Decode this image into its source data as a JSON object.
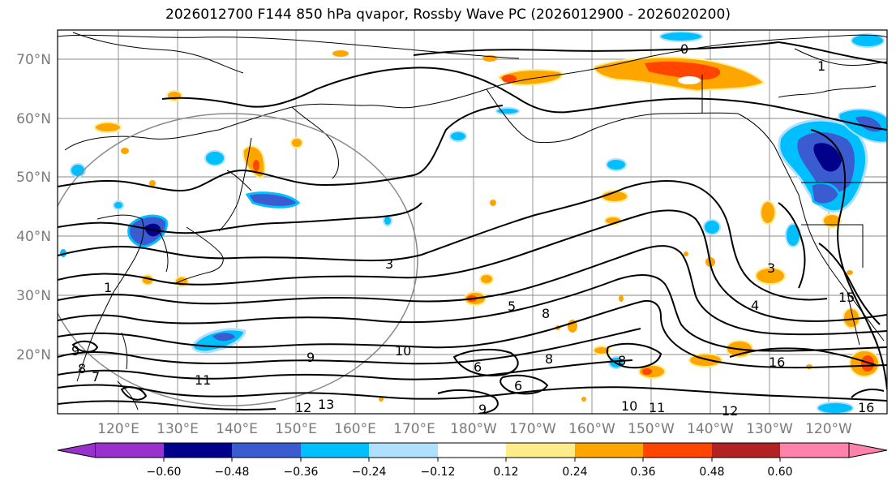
{
  "map": {
    "title": "2026012700 F144 850 hPa qvapor, Rossby Wave PC (2026012900 - 2026020200)",
    "lat_labels": [
      "70°N",
      "60°N",
      "50°N",
      "40°N",
      "30°N",
      "20°N"
    ],
    "lon_labels": [
      "120°E",
      "130°E",
      "140°E",
      "150°E",
      "160°E",
      "170°E",
      "180°W",
      "170°W",
      "160°W",
      "150°W",
      "140°W",
      "130°W",
      "120°W"
    ],
    "contour_labels": [
      "0",
      "1",
      "1",
      "3",
      "3",
      "4",
      "5",
      "6",
      "6",
      "7",
      "8",
      "8",
      "8",
      "8",
      "9",
      "9",
      "9",
      "10",
      "10",
      "11",
      "11",
      "12",
      "12",
      "13",
      "16",
      "16",
      "15"
    ]
  },
  "colorbar": {
    "colors": [
      "#9932cc",
      "#00008b",
      "#3b5bd0",
      "#00bfff",
      "#b0e0ff",
      "#ffffff",
      "#ffec8b",
      "#ffa500",
      "#ff4500",
      "#b22222",
      "#ff82ab"
    ],
    "tick_labels": [
      "−0.60",
      "−0.48",
      "−0.36",
      "−0.24",
      "−0.12",
      "0.12",
      "0.24",
      "0.36",
      "0.48",
      "0.60"
    ]
  }
}
